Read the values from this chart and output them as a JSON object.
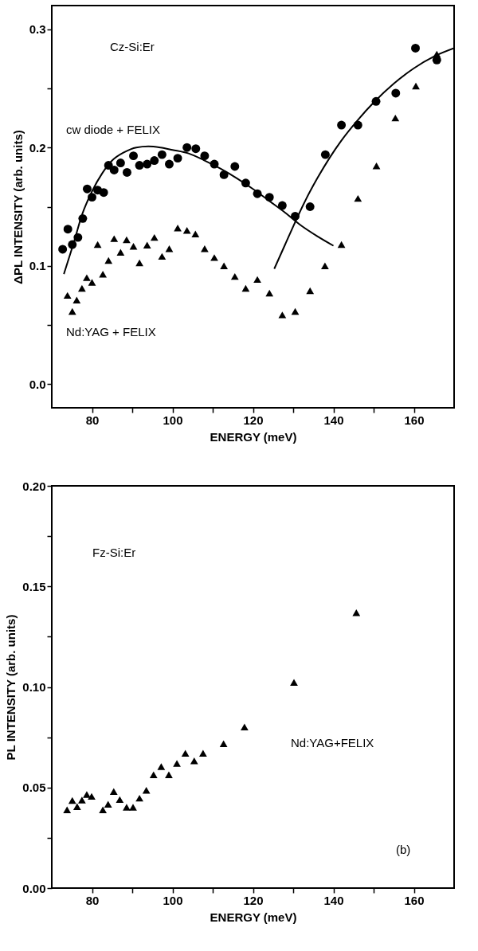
{
  "chart_data": [
    {
      "type": "scatter",
      "xlabel": "ENERGY (meV)",
      "ylabel": "ΔPL INTENSITY (arb. units)",
      "annotations": [
        "Cz-Si:Er"
      ],
      "xlim": [
        70,
        170
      ],
      "ylim": [
        -0.02,
        0.32
      ],
      "xticks": [
        80,
        {
          "value": 90,
          "label": null
        },
        100,
        {
          "value": 110,
          "label": null
        },
        120,
        {
          "value": 130,
          "label": null
        },
        140,
        {
          "value": 150,
          "label": null
        },
        160
      ],
      "yticks": [
        {
          "value": 0,
          "label": "0.0"
        },
        {
          "value": 0.05,
          "label": null
        },
        {
          "value": 0.1,
          "label": "0.1"
        },
        {
          "value": 0.15,
          "label": null
        },
        {
          "value": 0.2,
          "label": "0.2"
        },
        {
          "value": 0.25,
          "label": null
        },
        {
          "value": 0.3,
          "label": "0.3"
        }
      ],
      "grid": false,
      "series": [
        {
          "name": "cw diode + FELIX",
          "color": "#000000",
          "marker": "circle",
          "x": [
            72.7,
            74,
            75.1,
            76.5,
            77.7,
            78.8,
            80,
            81.4,
            82.9,
            84.1,
            85.5,
            87.1,
            88.7,
            90.3,
            91.8,
            93.7,
            95.5,
            97.4,
            99.2,
            101.3,
            103.6,
            105.8,
            108,
            110.4,
            112.8,
            115.5,
            118.2,
            121.1,
            124.1,
            127.3,
            130.5,
            134.2,
            138,
            142,
            146.1,
            150.6,
            155.5,
            160.4,
            165.7
          ],
          "values": [
            0.114,
            0.131,
            0.118,
            0.124,
            0.14,
            0.165,
            0.158,
            0.164,
            0.162,
            0.185,
            0.181,
            0.187,
            0.179,
            0.193,
            0.185,
            0.186,
            0.189,
            0.194,
            0.186,
            0.191,
            0.2,
            0.199,
            0.193,
            0.186,
            0.177,
            0.184,
            0.17,
            0.161,
            0.158,
            0.151,
            0.142,
            0.15,
            0.194,
            0.219,
            0.219,
            0.239,
            0.246,
            0.284,
            0.274
          ]
        },
        {
          "name": "Nd:YAG + FELIX",
          "color": "#000000",
          "marker": "triangle",
          "x": [
            73.9,
            75.1,
            76.2,
            77.5,
            78.7,
            80,
            81.4,
            82.7,
            84.1,
            85.5,
            87.1,
            88.6,
            90.3,
            91.8,
            93.7,
            95.5,
            97.4,
            99.2,
            101.3,
            103.6,
            105.7,
            108,
            110.4,
            112.8,
            115.5,
            118.2,
            121.1,
            124.1,
            127.3,
            130.5,
            134.2,
            137.9,
            142,
            146.1,
            150.7,
            155.4,
            160.5,
            165.7
          ],
          "values": [
            0.075,
            0.0615,
            0.071,
            0.081,
            0.09,
            0.086,
            0.118,
            0.093,
            0.1045,
            0.123,
            0.1115,
            0.122,
            0.1165,
            0.1025,
            0.1175,
            0.124,
            0.108,
            0.1145,
            0.132,
            0.13,
            0.127,
            0.1145,
            0.107,
            0.1,
            0.091,
            0.081,
            0.0885,
            0.077,
            0.0585,
            0.0615,
            0.079,
            0.1,
            0.118,
            0.157,
            0.1845,
            0.225,
            0.252,
            0.279
          ]
        },
        {
          "type": "line",
          "color": "#000000",
          "x": [
            73,
            75.5,
            77.5,
            80,
            82.5,
            85,
            88,
            91,
            94,
            97,
            100,
            104,
            108,
            112,
            116,
            120,
            124,
            128,
            132,
            136,
            140
          ],
          "values": [
            0.093,
            0.12,
            0.143,
            0.163,
            0.178,
            0.189,
            0.196,
            0.2,
            0.201,
            0.2,
            0.198,
            0.195,
            0.189,
            0.182,
            0.174,
            0.165,
            0.155,
            0.145,
            0.134,
            0.125,
            0.117
          ]
        },
        {
          "type": "line",
          "color": "#000000",
          "x": [
            125.3,
            128,
            130.5,
            133,
            136,
            139,
            142,
            146,
            150,
            155,
            160,
            165,
            170
          ],
          "values": [
            0.0975,
            0.118,
            0.137,
            0.155,
            0.174,
            0.191,
            0.206,
            0.223,
            0.238,
            0.254,
            0.267,
            0.277,
            0.284
          ]
        }
      ]
    },
    {
      "type": "scatter",
      "xlabel": "ENERGY (meV)",
      "ylabel": "PL INTENSITY (arb. units)",
      "annotations": [
        "Fz-Si:Er",
        "(b)"
      ],
      "xlim": [
        70,
        170
      ],
      "ylim": [
        0,
        0.2
      ],
      "xticks": [
        80,
        {
          "value": 90,
          "label": null
        },
        100,
        {
          "value": 110,
          "label": null
        },
        120,
        {
          "value": 130,
          "label": null
        },
        140,
        {
          "value": 150,
          "label": null
        },
        160
      ],
      "yticks": [
        {
          "value": 0,
          "label": "0.00"
        },
        {
          "value": 0.025,
          "label": null
        },
        {
          "value": 0.05,
          "label": "0.05"
        },
        {
          "value": 0.075,
          "label": null
        },
        {
          "value": 0.1,
          "label": "0.10"
        },
        {
          "value": 0.125,
          "label": null
        },
        {
          "value": 0.15,
          "label": "0.15"
        },
        {
          "value": 0.175,
          "label": null
        },
        {
          "value": 0.2,
          "label": "0.20"
        }
      ],
      "grid": false,
      "series": [
        {
          "name": "Nd:YAG+FELIX",
          "color": "#000000",
          "marker": "triangle",
          "x": [
            73.8,
            75.1,
            76.3,
            77.5,
            78.7,
            79.9,
            82.7,
            84,
            85.4,
            86.9,
            88.6,
            90.2,
            91.8,
            93.5,
            95.3,
            97.2,
            99.1,
            101.1,
            103.2,
            105.4,
            107.6,
            112.7,
            117.9,
            130.2,
            145.7
          ],
          "values": [
            0.0389,
            0.0436,
            0.0405,
            0.0438,
            0.0465,
            0.0456,
            0.0389,
            0.0417,
            0.048,
            0.044,
            0.0402,
            0.0402,
            0.0447,
            0.0486,
            0.0563,
            0.0604,
            0.0563,
            0.062,
            0.067,
            0.0633,
            0.067,
            0.0718,
            0.0801,
            0.1023,
            0.1369
          ]
        }
      ]
    }
  ]
}
